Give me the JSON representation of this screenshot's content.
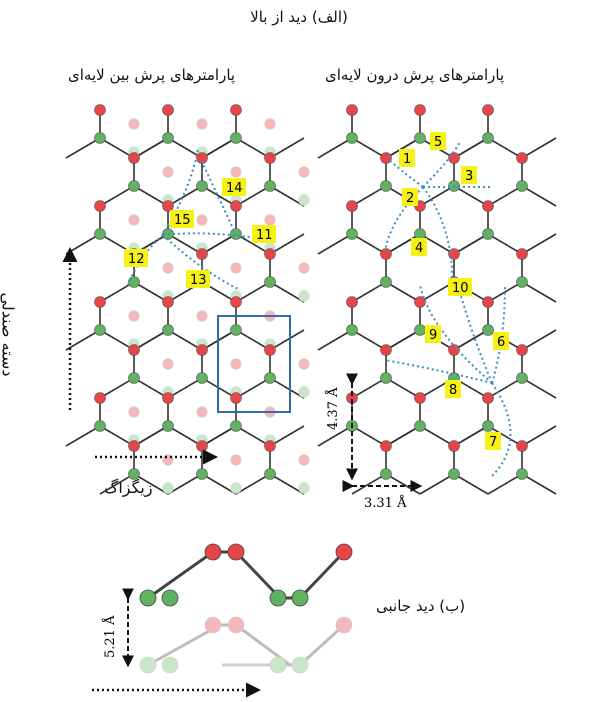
{
  "title_top": "(الف) دید از بالا",
  "left_panel_title": "پارامترهای پرش بین لایه‌ای",
  "right_panel_title": "پارامترهای پرش درون لایه‌ای",
  "axis_armchair": "دسته صندلی",
  "axis_zigzag": "زیگزاگ",
  "side_view_title": "(ب) دید جانبی",
  "dims": {
    "a_vertical": "4.37 Å",
    "a_horizontal": "3.31 Å",
    "layer_height": "5.21 Å"
  },
  "colors": {
    "red_atom": "#e8454a",
    "green_atom": "#5fb25f",
    "hop_line": "#3a8fbf",
    "label_bg": "#f5f015",
    "cell_box": "#2f6fa6",
    "bond": "#333333"
  },
  "hop_labels_right": [
    "1",
    "2",
    "3",
    "4",
    "5",
    "6",
    "7",
    "8",
    "9",
    "10"
  ],
  "hop_labels_left": [
    "11",
    "12",
    "13",
    "14",
    "15"
  ]
}
